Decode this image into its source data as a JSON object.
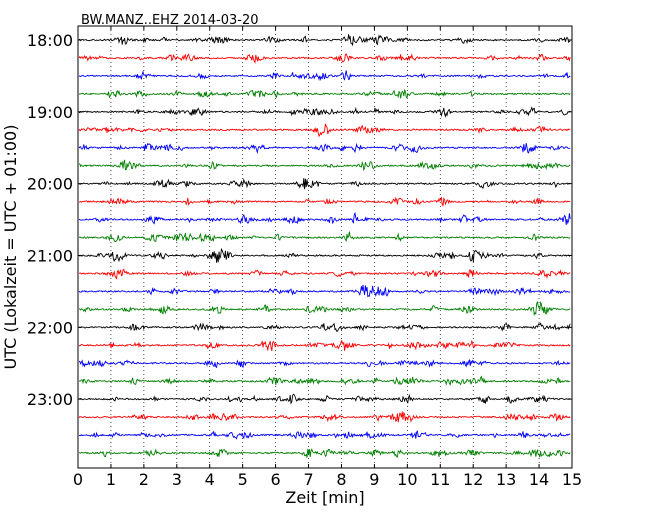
{
  "chart_data": {
    "type": "line",
    "title": "BW.MANZ..EHZ 2014-03-20",
    "xlabel": "Zeit  [min]",
    "ylabel": "UTC (Lokalzeit = UTC + 01:00)",
    "xlim": [
      0,
      15
    ],
    "x_ticks": [
      "0",
      "1",
      "2",
      "3",
      "4",
      "5",
      "6",
      "7",
      "8",
      "9",
      "10",
      "11",
      "12",
      "13",
      "14",
      "15"
    ],
    "y_tick_labels": [
      "18:00",
      "19:00",
      "20:00",
      "21:00",
      "22:00",
      "23:00"
    ],
    "x_grid": "dotted vertical at each minute",
    "trace_interval_minutes": 15,
    "start_time": "18:00",
    "end_time": "23:45",
    "color_cycle": [
      "#000000",
      "#ff0000",
      "#0000ff",
      "#008000"
    ],
    "series": [
      {
        "start": "18:00",
        "color": "#000000"
      },
      {
        "start": "18:15",
        "color": "#ff0000"
      },
      {
        "start": "18:30",
        "color": "#0000ff"
      },
      {
        "start": "18:45",
        "color": "#008000"
      },
      {
        "start": "19:00",
        "color": "#000000"
      },
      {
        "start": "19:15",
        "color": "#ff0000"
      },
      {
        "start": "19:30",
        "color": "#0000ff"
      },
      {
        "start": "19:45",
        "color": "#008000"
      },
      {
        "start": "20:00",
        "color": "#000000"
      },
      {
        "start": "20:15",
        "color": "#ff0000"
      },
      {
        "start": "20:30",
        "color": "#0000ff"
      },
      {
        "start": "20:45",
        "color": "#008000"
      },
      {
        "start": "21:00",
        "color": "#000000"
      },
      {
        "start": "21:15",
        "color": "#ff0000"
      },
      {
        "start": "21:30",
        "color": "#0000ff"
      },
      {
        "start": "21:45",
        "color": "#008000"
      },
      {
        "start": "22:00",
        "color": "#000000"
      },
      {
        "start": "22:15",
        "color": "#ff0000"
      },
      {
        "start": "22:30",
        "color": "#0000ff"
      },
      {
        "start": "22:45",
        "color": "#008000"
      },
      {
        "start": "23:00",
        "color": "#000000"
      },
      {
        "start": "23:15",
        "color": "#ff0000"
      },
      {
        "start": "23:30",
        "color": "#0000ff"
      },
      {
        "start": "23:45",
        "color": "#008000"
      }
    ]
  }
}
